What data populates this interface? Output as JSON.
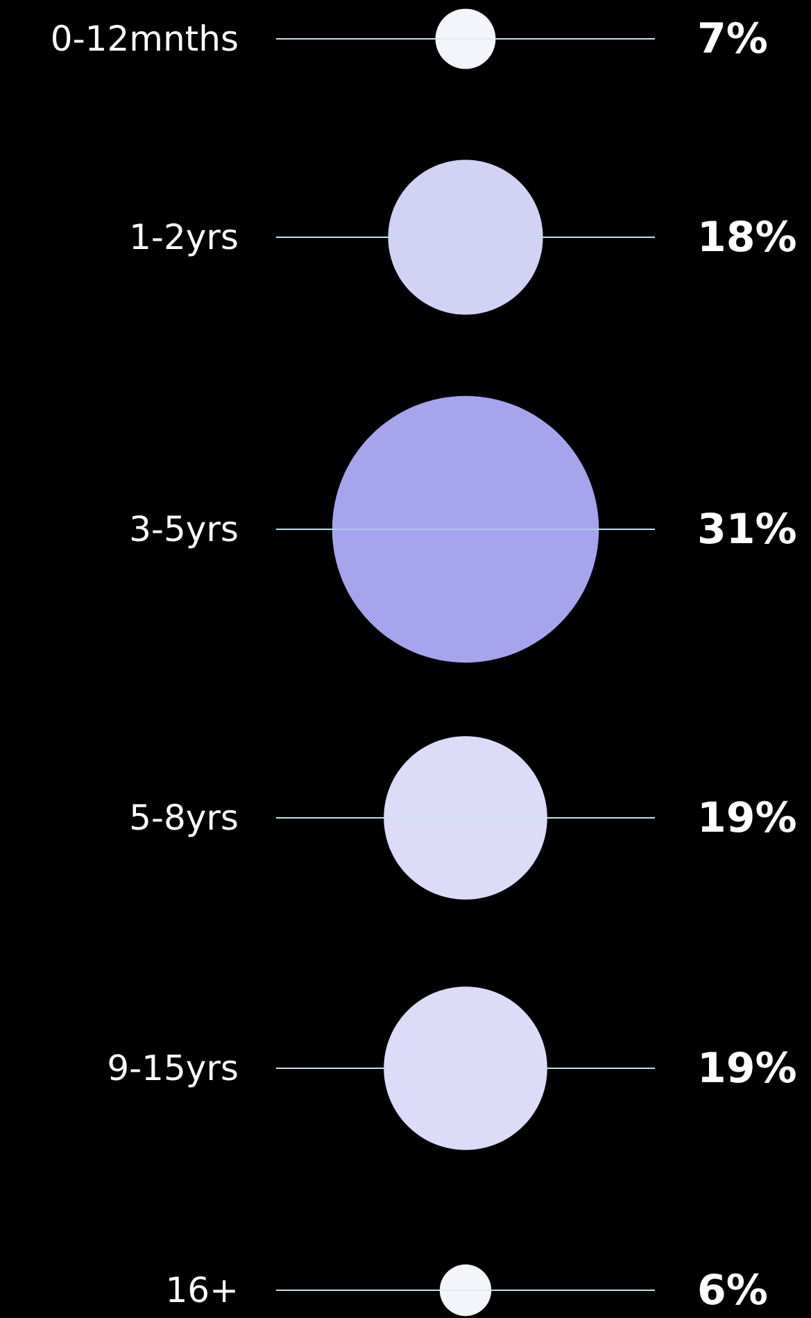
{
  "chart_data": {
    "type": "bubble",
    "categories": [
      "0-12mnths",
      "1-2yrs",
      "3-5yrs",
      "5-8yrs",
      "9-15yrs",
      "16+"
    ],
    "values": [
      7,
      18,
      31,
      19,
      19,
      6
    ],
    "value_labels": [
      "7%",
      "18%",
      "31%",
      "19%",
      "19%",
      "6%"
    ],
    "unit": "%",
    "title": "",
    "xlabel": "",
    "ylabel": "",
    "legend": "none",
    "grid": false,
    "bubble_colors": [
      "#F4F5FB",
      "#D2D2F5",
      "#A7A4EE",
      "#DCDCF8",
      "#DCDCF8",
      "#F4F5FB"
    ]
  },
  "colors": {
    "background": "#000000",
    "text": "#FFFFFF",
    "guide_line": "#BFE3F2"
  }
}
